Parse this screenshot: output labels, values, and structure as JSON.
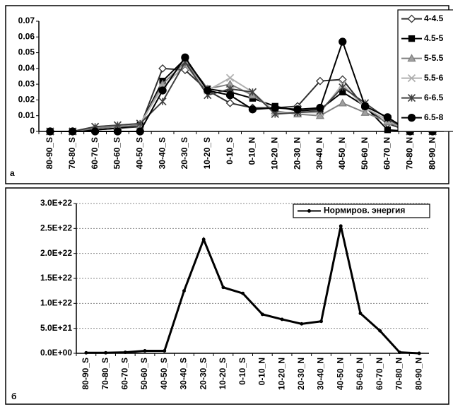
{
  "chart_data": [
    {
      "type": "line",
      "panel_label": "а",
      "categories": [
        "80-90_S",
        "70-80_S",
        "60-70_S",
        "50-60_S",
        "40-50_S",
        "30-40_S",
        "20-30_S",
        "10-20_S",
        "0-10_S",
        "0-10_N",
        "10-20_N",
        "20-30_N",
        "30-40_N",
        "40-50_N",
        "50-60_N",
        "60-70_N",
        "70-80_N",
        "80-90_N"
      ],
      "ylim": [
        0,
        0.07
      ],
      "yticks": [
        0,
        0.01,
        0.02,
        0.03,
        0.04,
        0.05,
        0.06,
        0.07
      ],
      "grid": false,
      "legend": "top-right",
      "series": [
        {
          "name": "4-4.5",
          "color": "#303030",
          "marker": "diamond",
          "marker_fill": "#ffffff",
          "values": [
            0,
            0,
            0.001,
            0.002,
            0.003,
            0.04,
            0.039,
            0.026,
            0.018,
            0.015,
            0.015,
            0.016,
            0.032,
            0.033,
            0.015,
            0.005,
            0,
            0
          ]
        },
        {
          "name": "4.5-5",
          "color": "#000000",
          "marker": "square",
          "marker_fill": "#000000",
          "values": [
            0,
            0,
            0.001,
            0.002,
            0.004,
            0.032,
            0.046,
            0.027,
            0.025,
            0.021,
            0.016,
            0.013,
            0.014,
            0.025,
            0.016,
            0.001,
            0,
            0
          ]
        },
        {
          "name": "5-5.5",
          "color": "#808080",
          "marker": "triangle",
          "marker_fill": "#a0a0a0",
          "values": [
            0,
            0,
            0.002,
            0.003,
            0.004,
            0.03,
            0.044,
            0.027,
            0.03,
            0.023,
            0.013,
            0.011,
            0.01,
            0.018,
            0.012,
            0.006,
            0,
            0
          ]
        },
        {
          "name": "5.5-6",
          "color": "#b0b0b0",
          "marker": "x",
          "marker_fill": "none",
          "values": [
            0,
            0,
            0.003,
            0.004,
            0.005,
            0.028,
            0.042,
            0.026,
            0.034,
            0.025,
            0.012,
            0.012,
            0.012,
            0.03,
            0.015,
            0.007,
            0,
            0
          ]
        },
        {
          "name": "6-6.5",
          "color": "#404040",
          "marker": "asterisk",
          "marker_fill": "none",
          "values": [
            0,
            0,
            0.003,
            0.004,
            0.005,
            0.019,
            0.044,
            0.023,
            0.027,
            0.025,
            0.011,
            0.012,
            0.013,
            0.028,
            0.018,
            0.008,
            0,
            0
          ]
        },
        {
          "name": "6.5-8",
          "color": "#000000",
          "marker": "circle",
          "marker_fill": "#000000",
          "values": [
            0,
            0,
            0,
            0,
            0,
            0.026,
            0.047,
            0.026,
            0.023,
            0.014,
            0.015,
            0.014,
            0.015,
            0.057,
            0.016,
            0.009,
            0,
            0
          ]
        }
      ]
    },
    {
      "type": "line",
      "panel_label": "б",
      "categories": [
        "80-90_S",
        "70-80_S",
        "60-70_S",
        "50-60_S",
        "40-50_S",
        "30-40_S",
        "20-30_S",
        "10-20_S",
        "0-10_S",
        "0-10_N",
        "10-20_N",
        "20-30_N",
        "30-40_N",
        "40-50_N",
        "50-60_N",
        "60-70_N",
        "70-80_N",
        "80-90_N"
      ],
      "ylim": [
        0,
        3e+22
      ],
      "yticks": [
        {
          "value": 0,
          "label": "0.0E+00"
        },
        {
          "value": 5e+21,
          "label": "5.0E+21"
        },
        {
          "value": 1e+22,
          "label": "1.0E+22"
        },
        {
          "value": 1.5e+22,
          "label": "1.5E+22"
        },
        {
          "value": 2e+22,
          "label": "2.0E+22"
        },
        {
          "value": 2.5e+22,
          "label": "2.5E+22"
        },
        {
          "value": 3e+22,
          "label": "3.0E+22"
        }
      ],
      "grid": true,
      "legend": "top-right",
      "series": [
        {
          "name": "Нормиров. энергия",
          "color": "#000000",
          "marker": "dot",
          "marker_fill": "#000000",
          "values": [
            1e+20,
            1e+20,
            2e+20,
            5e+20,
            5e+20,
            1.25e+22,
            2.28e+22,
            1.32e+22,
            1.2e+22,
            7.8e+21,
            6.8e+21,
            5.9e+21,
            6.4e+21,
            2.55e+22,
            8e+21,
            4.5e+21,
            2e+20,
            0
          ]
        }
      ]
    }
  ]
}
